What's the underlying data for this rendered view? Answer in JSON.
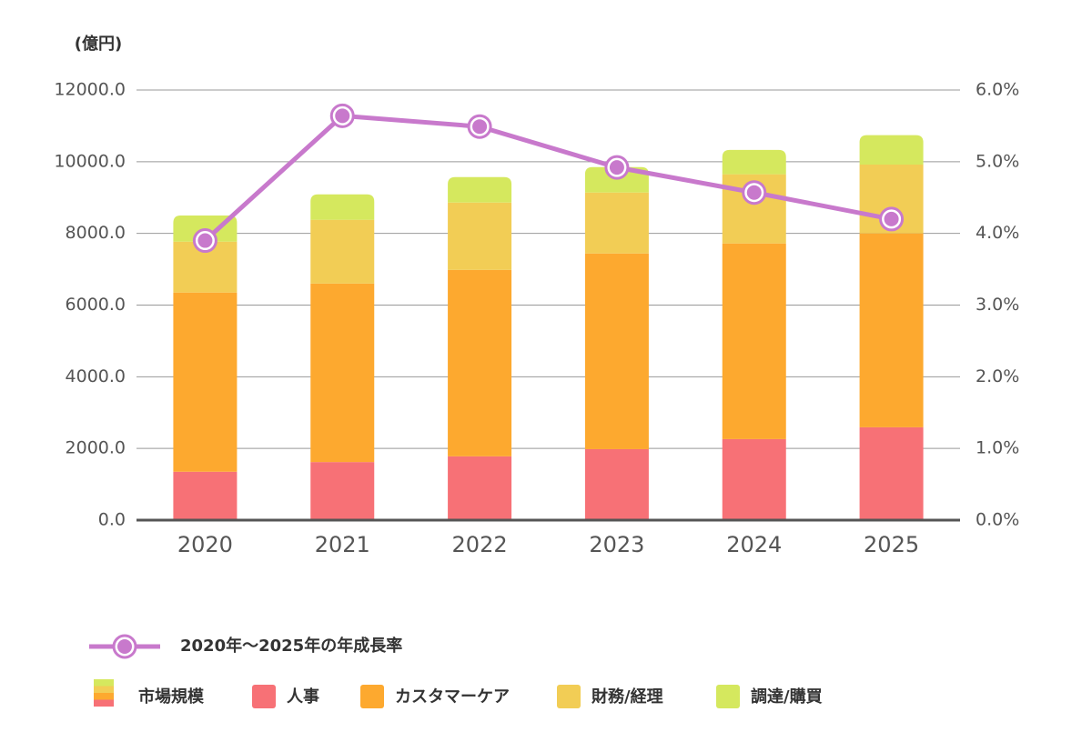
{
  "chart_data": {
    "type": "bar",
    "stacked": true,
    "y_label": "(億円)",
    "categories": [
      "2020",
      "2021",
      "2022",
      "2023",
      "2024",
      "2025"
    ],
    "stack_label": "市場規模",
    "series": [
      {
        "name": "人事",
        "color": "#f77176",
        "values": [
          1350,
          1620,
          1780,
          1980,
          2260,
          2590
        ]
      },
      {
        "name": "カスタマーケア",
        "color": "#fda92f",
        "values": [
          5000,
          4980,
          5200,
          5460,
          5460,
          5410
        ]
      },
      {
        "name": "財務/経理",
        "color": "#f2cd55",
        "values": [
          1420,
          1780,
          1880,
          1700,
          1930,
          1920
        ]
      },
      {
        "name": "調達/購買",
        "color": "#d5e85e",
        "values": [
          730,
          710,
          710,
          710,
          680,
          820
        ]
      },
      {
        "name": "2020年～2025年の年成長率",
        "color": "#c879cc",
        "type": "line",
        "axis": "y2",
        "values": [
          3.9,
          5.64,
          5.49,
          4.92,
          4.57,
          4.2
        ]
      }
    ],
    "ylim": [
      0,
      12000
    ],
    "yticks": [
      {
        "value": 0,
        "label": "0.0"
      },
      {
        "value": 2000,
        "label": "2000.0"
      },
      {
        "value": 4000,
        "label": "4000.0"
      },
      {
        "value": 6000,
        "label": "6000.0"
      },
      {
        "value": 8000,
        "label": "8000.0"
      },
      {
        "value": 10000,
        "label": "10000.0"
      },
      {
        "value": 12000,
        "label": "12000.0"
      }
    ],
    "y2lim": [
      0,
      6
    ],
    "y2ticks": [
      {
        "value": 0,
        "label": "0.0%"
      },
      {
        "value": 1,
        "label": "1.0%"
      },
      {
        "value": 2,
        "label": "2.0%"
      },
      {
        "value": 3,
        "label": "3.0%"
      },
      {
        "value": 4,
        "label": "4.0%"
      },
      {
        "value": 5,
        "label": "5.0%"
      },
      {
        "value": 6,
        "label": "6.0%"
      }
    ],
    "grid": true
  }
}
